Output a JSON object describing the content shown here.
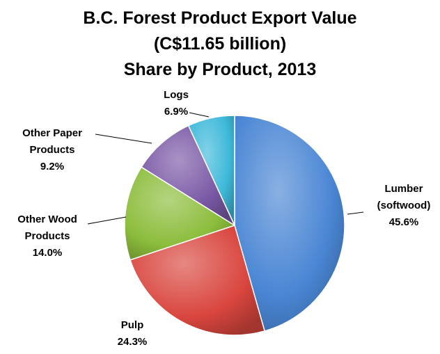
{
  "chart_data": {
    "type": "pie",
    "title": [
      "B.C. Forest Product Export Value",
      "(C$11.65 billion)",
      "Share by Product, 2013"
    ],
    "start_angle_deg": 0,
    "direction": "clockwise",
    "slices": [
      {
        "name_lines": [
          "Lumber",
          "(softwood)"
        ],
        "value": 45.6,
        "value_label": "45.6%",
        "color": "#4A86D4",
        "label_side": "right"
      },
      {
        "name_lines": [
          "Pulp"
        ],
        "value": 24.3,
        "value_label": "24.3%",
        "color": "#D9463E",
        "label_side": "bottom"
      },
      {
        "name_lines": [
          "Other Wood",
          "Products"
        ],
        "value": 14.0,
        "value_label": "14.0%",
        "color": "#8CBD3C",
        "label_side": "left"
      },
      {
        "name_lines": [
          "Other Paper",
          "Products"
        ],
        "value": 9.2,
        "value_label": "9.2%",
        "color": "#7A59A6",
        "label_side": "upper-left"
      },
      {
        "name_lines": [
          "Logs"
        ],
        "value": 6.9,
        "value_label": "6.9%",
        "color": "#3EB9DA",
        "label_side": "top"
      }
    ],
    "legend": "none",
    "labels": "outside with leader lines"
  }
}
